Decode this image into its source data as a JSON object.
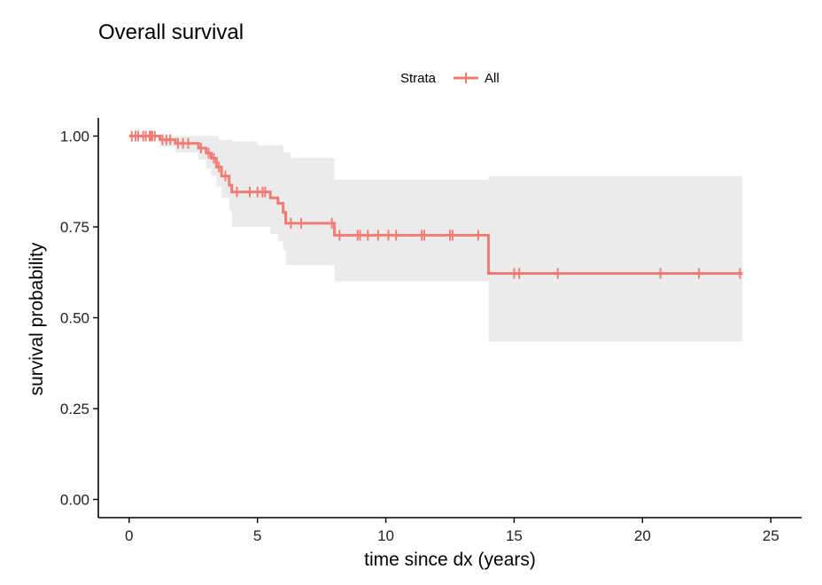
{
  "chart_data": {
    "type": "line",
    "title": "Overall survival",
    "xlabel": "time since dx (years)",
    "ylabel": "survival probability",
    "xlim": [
      -1.2,
      26.2
    ],
    "ylim": [
      -0.05,
      1.05
    ],
    "x_ticks": [
      0,
      5,
      10,
      15,
      20,
      25
    ],
    "x_tick_labels": [
      "0",
      "5",
      "10",
      "15",
      "20",
      "25"
    ],
    "y_ticks": [
      0,
      0.25,
      0.5,
      0.75,
      1.0
    ],
    "y_tick_labels": [
      "0.00",
      "0.25",
      "0.50",
      "0.75",
      "1.00"
    ],
    "grid": false,
    "legend": {
      "title": "Strata",
      "position": "top",
      "entries": [
        "All"
      ]
    },
    "series": [
      {
        "name": "All",
        "color": "#F07C74",
        "ci_color": "#EBEBEB",
        "step": [
          {
            "x": 0,
            "y": 1.0
          },
          {
            "x": 1.2,
            "y": 0.99
          },
          {
            "x": 1.8,
            "y": 0.98
          },
          {
            "x": 2.7,
            "y": 0.967
          },
          {
            "x": 3.0,
            "y": 0.953
          },
          {
            "x": 3.2,
            "y": 0.939
          },
          {
            "x": 3.4,
            "y": 0.915
          },
          {
            "x": 3.6,
            "y": 0.89
          },
          {
            "x": 3.9,
            "y": 0.865
          },
          {
            "x": 4.0,
            "y": 0.846
          },
          {
            "x": 5.5,
            "y": 0.83
          },
          {
            "x": 5.8,
            "y": 0.815
          },
          {
            "x": 6.0,
            "y": 0.79
          },
          {
            "x": 6.1,
            "y": 0.76
          },
          {
            "x": 8.0,
            "y": 0.727
          },
          {
            "x": 14.0,
            "y": 0.622
          },
          {
            "x": 23.9,
            "y": 0.622
          }
        ],
        "ci_lower": [
          {
            "x": 0,
            "y": 1.0
          },
          {
            "x": 1.2,
            "y": 0.97
          },
          {
            "x": 1.8,
            "y": 0.955
          },
          {
            "x": 2.7,
            "y": 0.935
          },
          {
            "x": 3.0,
            "y": 0.91
          },
          {
            "x": 3.2,
            "y": 0.89
          },
          {
            "x": 3.4,
            "y": 0.86
          },
          {
            "x": 3.6,
            "y": 0.83
          },
          {
            "x": 3.9,
            "y": 0.795
          },
          {
            "x": 4.0,
            "y": 0.75
          },
          {
            "x": 5.5,
            "y": 0.73
          },
          {
            "x": 5.8,
            "y": 0.71
          },
          {
            "x": 6.0,
            "y": 0.685
          },
          {
            "x": 6.1,
            "y": 0.645
          },
          {
            "x": 8.0,
            "y": 0.6
          },
          {
            "x": 14.0,
            "y": 0.435
          },
          {
            "x": 23.9,
            "y": 0.435
          }
        ],
        "ci_upper": [
          {
            "x": 0,
            "y": 1.0
          },
          {
            "x": 1.2,
            "y": 1.0
          },
          {
            "x": 2.5,
            "y": 1.0
          },
          {
            "x": 3.5,
            "y": 0.99
          },
          {
            "x": 4.0,
            "y": 0.985
          },
          {
            "x": 5.0,
            "y": 0.975
          },
          {
            "x": 6.0,
            "y": 0.955
          },
          {
            "x": 6.3,
            "y": 0.94
          },
          {
            "x": 8.0,
            "y": 0.88
          },
          {
            "x": 14.0,
            "y": 0.89
          },
          {
            "x": 23.9,
            "y": 0.89
          }
        ],
        "censored": [
          {
            "x": 0.1,
            "y": 1.0
          },
          {
            "x": 0.25,
            "y": 1.0
          },
          {
            "x": 0.35,
            "y": 1.0
          },
          {
            "x": 0.55,
            "y": 1.0
          },
          {
            "x": 0.65,
            "y": 1.0
          },
          {
            "x": 0.8,
            "y": 1.0
          },
          {
            "x": 0.85,
            "y": 1.0
          },
          {
            "x": 0.9,
            "y": 1.0
          },
          {
            "x": 1.0,
            "y": 1.0
          },
          {
            "x": 1.3,
            "y": 0.99
          },
          {
            "x": 1.45,
            "y": 0.99
          },
          {
            "x": 1.6,
            "y": 0.99
          },
          {
            "x": 1.9,
            "y": 0.98
          },
          {
            "x": 2.1,
            "y": 0.98
          },
          {
            "x": 2.3,
            "y": 0.98
          },
          {
            "x": 2.8,
            "y": 0.967
          },
          {
            "x": 3.1,
            "y": 0.953
          },
          {
            "x": 3.3,
            "y": 0.939
          },
          {
            "x": 3.5,
            "y": 0.915
          },
          {
            "x": 3.75,
            "y": 0.89
          },
          {
            "x": 4.2,
            "y": 0.846
          },
          {
            "x": 4.7,
            "y": 0.846
          },
          {
            "x": 5.0,
            "y": 0.846
          },
          {
            "x": 5.2,
            "y": 0.846
          },
          {
            "x": 5.3,
            "y": 0.846
          },
          {
            "x": 6.3,
            "y": 0.76
          },
          {
            "x": 6.7,
            "y": 0.76
          },
          {
            "x": 7.9,
            "y": 0.76
          },
          {
            "x": 8.2,
            "y": 0.727
          },
          {
            "x": 8.9,
            "y": 0.727
          },
          {
            "x": 9.0,
            "y": 0.727
          },
          {
            "x": 9.3,
            "y": 0.727
          },
          {
            "x": 9.7,
            "y": 0.727
          },
          {
            "x": 10.1,
            "y": 0.727
          },
          {
            "x": 10.4,
            "y": 0.727
          },
          {
            "x": 11.4,
            "y": 0.727
          },
          {
            "x": 11.5,
            "y": 0.727
          },
          {
            "x": 12.5,
            "y": 0.727
          },
          {
            "x": 12.6,
            "y": 0.727
          },
          {
            "x": 13.6,
            "y": 0.727
          },
          {
            "x": 15.0,
            "y": 0.622
          },
          {
            "x": 15.2,
            "y": 0.622
          },
          {
            "x": 16.7,
            "y": 0.622
          },
          {
            "x": 20.7,
            "y": 0.622
          },
          {
            "x": 22.2,
            "y": 0.622
          },
          {
            "x": 23.8,
            "y": 0.622
          }
        ]
      }
    ]
  }
}
